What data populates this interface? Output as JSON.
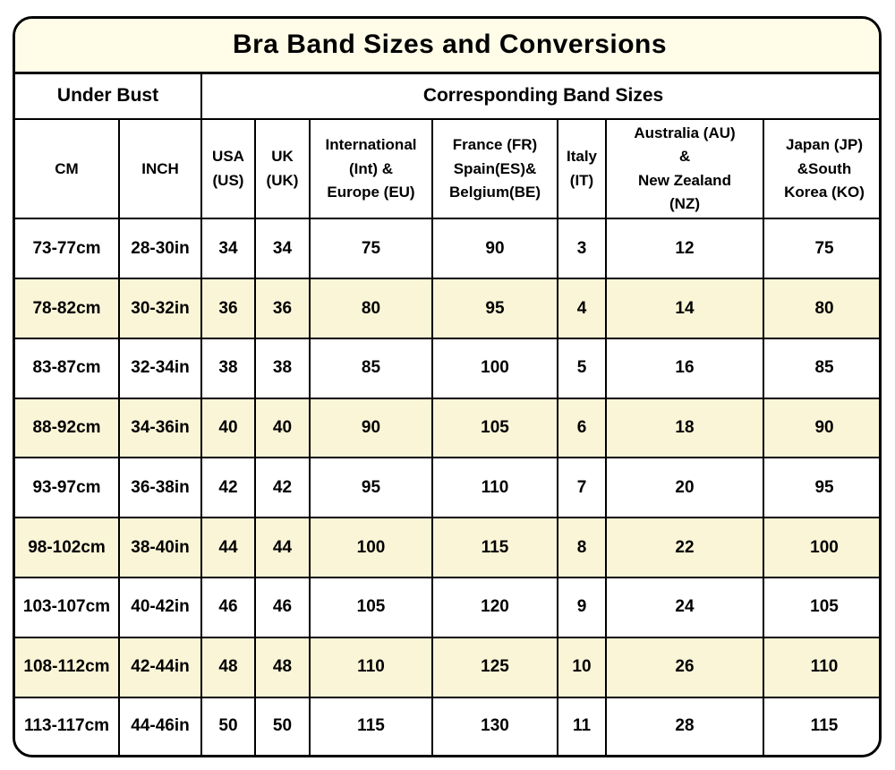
{
  "chart_data": {
    "type": "table",
    "title": "Bra Band Sizes and Conversions",
    "column_groups": [
      {
        "label": "Under Bust",
        "span": 2
      },
      {
        "label": "Corresponding Band Sizes",
        "span": 7
      }
    ],
    "columns": [
      {
        "key": "cm",
        "label": "CM"
      },
      {
        "key": "inch",
        "label": "INCH"
      },
      {
        "key": "usa",
        "label": "USA\n(US)"
      },
      {
        "key": "uk",
        "label": "UK\n(UK)"
      },
      {
        "key": "international_europe",
        "label": "International\n(Int) &\nEurope (EU)"
      },
      {
        "key": "france_spain_belgium",
        "label": "France (FR)\nSpain(ES)&\nBelgium(BE)"
      },
      {
        "key": "italy",
        "label": "Italy\n(IT)"
      },
      {
        "key": "australia_nz",
        "label": "Australia (AU)\n&\nNew Zealand\n(NZ)"
      },
      {
        "key": "japan_korea",
        "label": "Japan (JP)\n&South\nKorea (KO)"
      }
    ],
    "rows": [
      {
        "highlighted": false,
        "cells": [
          "73-77cm",
          "28-30in",
          "34",
          "34",
          "75",
          "90",
          "3",
          "12",
          "75"
        ]
      },
      {
        "highlighted": true,
        "cells": [
          "78-82cm",
          "30-32in",
          "36",
          "36",
          "80",
          "95",
          "4",
          "14",
          "80"
        ]
      },
      {
        "highlighted": false,
        "cells": [
          "83-87cm",
          "32-34in",
          "38",
          "38",
          "85",
          "100",
          "5",
          "16",
          "85"
        ]
      },
      {
        "highlighted": true,
        "cells": [
          "88-92cm",
          "34-36in",
          "40",
          "40",
          "90",
          "105",
          "6",
          "18",
          "90"
        ]
      },
      {
        "highlighted": false,
        "cells": [
          "93-97cm",
          "36-38in",
          "42",
          "42",
          "95",
          "110",
          "7",
          "20",
          "95"
        ]
      },
      {
        "highlighted": true,
        "cells": [
          "98-102cm",
          "38-40in",
          "44",
          "44",
          "100",
          "115",
          "8",
          "22",
          "100"
        ]
      },
      {
        "highlighted": false,
        "cells": [
          "103-107cm",
          "40-42in",
          "46",
          "46",
          "105",
          "120",
          "9",
          "24",
          "105"
        ]
      },
      {
        "highlighted": true,
        "cells": [
          "108-112cm",
          "42-44in",
          "48",
          "48",
          "110",
          "125",
          "10",
          "26",
          "110"
        ]
      },
      {
        "highlighted": false,
        "cells": [
          "113-117cm",
          "44-46in",
          "50",
          "50",
          "115",
          "130",
          "11",
          "28",
          "115"
        ]
      }
    ],
    "colors": {
      "title_background": "#FFFDE8",
      "row_highlight_background": "#FAF5D7",
      "row_background": "#FFFFFF",
      "border": "#000000",
      "text": "#000000"
    }
  }
}
